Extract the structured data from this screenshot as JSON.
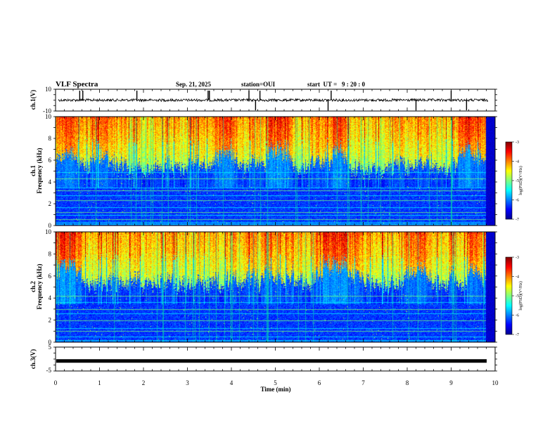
{
  "header": {
    "title": "VLF Spectra",
    "date": "Sep. 21, 2025",
    "station": "station=OUI",
    "start": "start  UT =   9 : 20 : 0"
  },
  "colors": {
    "low": "#00008f",
    "mid_low": "#0000ff",
    "mid": "#00ffff",
    "mid_high": "#ffff00",
    "high": "#ff0000",
    "top": "#7f0000",
    "trace": "#000000"
  },
  "chart_data": [
    {
      "type": "line",
      "name": "ch1-waveform",
      "ylabel": "ch.1(V)",
      "ylim": [
        -10,
        10
      ],
      "yticks": [
        "10",
        "-10"
      ],
      "baseline": 0,
      "noise_amplitude": 1.2,
      "spikes_min": [
        0.55,
        0.62,
        1.85,
        3.47,
        3.5,
        4.4,
        4.55,
        4.65,
        6.2,
        6.27,
        8.2,
        9.0,
        9.35
      ]
    },
    {
      "type": "heatmap",
      "name": "ch1-spectrogram",
      "ylabel": "ch.1",
      "ylabel2": "Frequency  (kHz)",
      "xlim": [
        0,
        10
      ],
      "ylim": [
        0,
        10
      ],
      "yticks": [
        "0",
        "2",
        "4",
        "6",
        "8",
        "10"
      ],
      "colorbar": {
        "label": "log(PSD)(V²/Hz)",
        "range": [
          -7,
          -3
        ],
        "ticks": [
          "-3",
          "-4",
          "-5",
          "-6",
          "-7"
        ]
      },
      "bands_khz": [
        0.3,
        0.6,
        1.0,
        1.2,
        1.7,
        2.3,
        2.8,
        3.2,
        3.5,
        4.3,
        4.9
      ]
    },
    {
      "type": "heatmap",
      "name": "ch2-spectrogram",
      "ylabel": "ch.2",
      "ylabel2": "Frequency  (kHz)",
      "xlim": [
        0,
        10
      ],
      "ylim": [
        0,
        10
      ],
      "yticks": [
        "0",
        "2",
        "4",
        "6",
        "8",
        "10"
      ],
      "colorbar": {
        "label": "log(PSD)(V²/Hz)",
        "range": [
          -7,
          -3
        ],
        "ticks": [
          "-3",
          "-4",
          "-5",
          "-6",
          "-7"
        ]
      },
      "bands_khz": [
        0.5,
        1.0,
        1.3,
        2.0,
        2.6,
        3.0,
        3.6,
        4.2
      ]
    },
    {
      "type": "line",
      "name": "ch3-waveform",
      "ylabel": "ch.3(V)",
      "ylim": [
        -5,
        5
      ],
      "yticks": [
        "5",
        "0",
        "-5"
      ],
      "baseline": -0.8
    }
  ],
  "xaxis": {
    "label": "Time  (min)",
    "ticks": [
      "0",
      "1",
      "2",
      "3",
      "4",
      "5",
      "6",
      "7",
      "8",
      "9",
      "10"
    ],
    "range": [
      0,
      10
    ]
  }
}
